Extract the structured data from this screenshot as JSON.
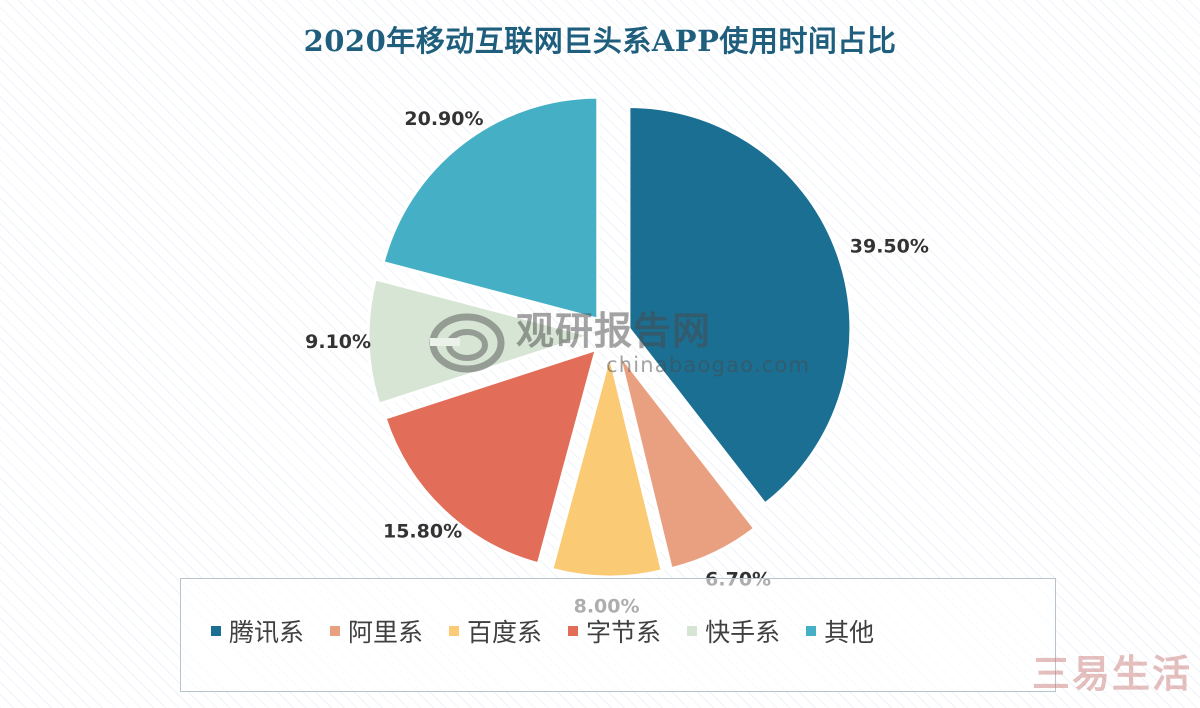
{
  "chart_data": {
    "type": "pie",
    "title": "2020年移动互联网巨头系APP使用时间占比",
    "series": [
      {
        "name": "腾讯系",
        "value": 39.5,
        "label": "39.50%",
        "color": "#1a6f93"
      },
      {
        "name": "阿里系",
        "value": 6.7,
        "label": "6.70%",
        "color": "#e9a080"
      },
      {
        "name": "百度系",
        "value": 8.0,
        "label": "8.00%",
        "color": "#fbca74"
      },
      {
        "name": "字节系",
        "value": 15.8,
        "label": "15.80%",
        "color": "#e26d59"
      },
      {
        "name": "快手系",
        "value": 9.1,
        "label": "9.10%",
        "color": "#d6e5d4"
      },
      {
        "name": "其他",
        "value": 20.9,
        "label": "20.90%",
        "color": "#45b0c5"
      }
    ],
    "legend_position": "bottom"
  },
  "watermark": {
    "cn": "观研报告网",
    "en": "chinabaogao.com"
  },
  "corner_mark": "三易生活"
}
